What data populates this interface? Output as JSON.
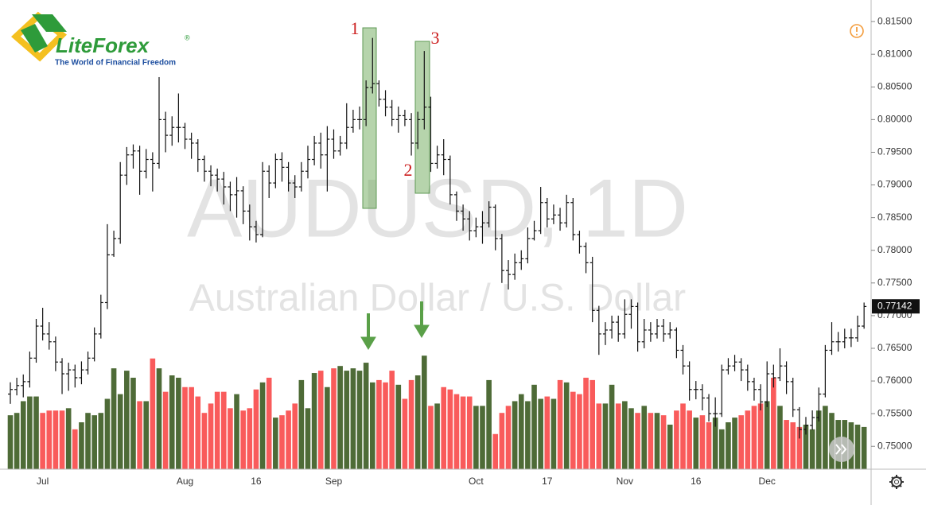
{
  "logo": {
    "name": "LiteForex",
    "mark": "®",
    "tagline": "The World of Financial Freedom"
  },
  "chart_data": {
    "type": "ohlc",
    "title": "AUDUSD, 1D",
    "subtitle": "Australian Dollar / U.S. Dollar",
    "annotations": [
      "1",
      "2",
      "3"
    ],
    "last_price": 0.77142,
    "color": "#111111",
    "volume_up_color": "#4e6b37",
    "volume_down_color": "#f95b5b",
    "ylim": [
      0.7465,
      0.8183
    ],
    "yticks": [
      {
        "value": 0.75,
        "label": "0.75000"
      },
      {
        "value": 0.755,
        "label": "0.75500"
      },
      {
        "value": 0.76,
        "label": "0.76000"
      },
      {
        "value": 0.765,
        "label": "0.76500"
      },
      {
        "value": 0.77,
        "label": "0.77000"
      },
      {
        "value": 0.775,
        "label": "0.77500"
      },
      {
        "value": 0.78,
        "label": "0.78000"
      },
      {
        "value": 0.785,
        "label": "0.78500"
      },
      {
        "value": 0.79,
        "label": "0.79000"
      },
      {
        "value": 0.795,
        "label": "0.79500"
      },
      {
        "value": 0.8,
        "label": "0.80000"
      },
      {
        "value": 0.805,
        "label": "0.80500"
      },
      {
        "value": 0.81,
        "label": "0.81000"
      },
      {
        "value": 0.815,
        "label": "0.81500"
      }
    ],
    "y2lim": [
      0,
      100
    ],
    "categories": [
      null,
      null,
      null,
      null,
      null,
      "Jul",
      null,
      null,
      null,
      null,
      null,
      null,
      null,
      null,
      null,
      null,
      null,
      null,
      null,
      null,
      null,
      null,
      null,
      null,
      null,
      null,
      null,
      "Aug",
      null,
      null,
      null,
      null,
      null,
      null,
      null,
      null,
      null,
      null,
      "16",
      null,
      null,
      null,
      null,
      null,
      null,
      null,
      null,
      null,
      null,
      null,
      "Sep",
      null,
      null,
      null,
      null,
      null,
      null,
      null,
      null,
      null,
      null,
      null,
      null,
      null,
      null,
      null,
      null,
      null,
      null,
      null,
      null,
      null,
      "Oct",
      null,
      null,
      null,
      null,
      null,
      null,
      null,
      null,
      null,
      null,
      "17",
      null,
      null,
      null,
      null,
      null,
      null,
      null,
      null,
      null,
      null,
      null,
      "Nov",
      null,
      null,
      null,
      null,
      null,
      null,
      null,
      null,
      null,
      null,
      "16",
      null,
      null,
      null,
      null,
      null,
      null,
      null,
      null,
      null,
      null,
      "Dec",
      null,
      null,
      null,
      null,
      null,
      null,
      null,
      null,
      null,
      null,
      null,
      null,
      null,
      null,
      null
    ],
    "open": [
      0.758,
      0.7587,
      0.7593,
      0.7599,
      0.7635,
      0.7684,
      0.7672,
      0.766,
      0.7629,
      0.7611,
      0.7617,
      0.7605,
      0.7617,
      0.7635,
      0.7672,
      0.772,
      0.7793,
      0.7818,
      0.7915,
      0.7946,
      0.7952,
      0.7921,
      0.7939,
      0.7933,
      0.8,
      0.7976,
      0.7988,
      0.7988,
      0.797,
      0.7964,
      0.7939,
      0.7921,
      0.7915,
      0.7909,
      0.7897,
      0.7885,
      0.7891,
      0.786,
      0.7836,
      0.7824,
      0.7921,
      0.7903,
      0.7939,
      0.7927,
      0.7903,
      0.7897,
      0.7921,
      0.7939,
      0.7964,
      0.7946,
      0.797,
      0.7952,
      0.7964,
      0.7988,
      0.8,
      0.8,
      0.8049,
      0.8055,
      0.8031,
      0.8019,
      0.8,
      0.8006,
      0.8,
      0.7964,
      0.8,
      0.8019,
      0.7933,
      0.7946,
      0.7939,
      0.7885,
      0.786,
      0.7848,
      0.783,
      0.7836,
      0.7842,
      0.7866,
      0.7818,
      0.7769,
      0.7763,
      0.7781,
      0.7787,
      0.7818,
      0.783,
      0.7873,
      0.7848,
      0.7854,
      0.7842,
      0.7873,
      0.7824,
      0.7806,
      0.7781,
      0.7708,
      0.7672,
      0.7678,
      0.769,
      0.7672,
      0.7702,
      0.7714,
      0.766,
      0.7678,
      0.7672,
      0.7684,
      0.7672,
      0.7678,
      0.7647,
      0.7623,
      0.7587,
      0.7587,
      0.7574,
      0.755,
      0.755,
      0.7617,
      0.7623,
      0.7629,
      0.7617,
      0.7599,
      0.7587,
      0.7568,
      0.7611,
      0.7605,
      0.7623,
      0.7599,
      0.7556,
      0.7526,
      0.7532,
      0.7544,
      0.758,
      0.7647,
      0.766,
      0.766,
      0.7666,
      0.7666,
      0.7684
    ],
    "high": [
      0.7598,
      0.7605,
      0.761,
      0.7645,
      0.7695,
      0.7712,
      0.769,
      0.7668,
      0.7635,
      0.7628,
      0.7625,
      0.763,
      0.7645,
      0.7682,
      0.7732,
      0.784,
      0.783,
      0.7935,
      0.7958,
      0.7962,
      0.796,
      0.7955,
      0.795,
      0.8065,
      0.8012,
      0.8005,
      0.804,
      0.7995,
      0.798,
      0.797,
      0.7945,
      0.793,
      0.7925,
      0.792,
      0.7905,
      0.7912,
      0.7898,
      0.787,
      0.7845,
      0.7935,
      0.793,
      0.7948,
      0.795,
      0.7935,
      0.7915,
      0.7935,
      0.796,
      0.7975,
      0.798,
      0.799,
      0.7985,
      0.7975,
      0.8025,
      0.8015,
      0.802,
      0.806,
      0.8125,
      0.806,
      0.8045,
      0.803,
      0.802,
      0.8015,
      0.801,
      0.8012,
      0.8105,
      0.8035,
      0.796,
      0.797,
      0.7945,
      0.789,
      0.787,
      0.786,
      0.785,
      0.786,
      0.7875,
      0.787,
      0.7825,
      0.7785,
      0.7795,
      0.78,
      0.7835,
      0.7845,
      0.7897,
      0.788,
      0.787,
      0.7865,
      0.7885,
      0.788,
      0.783,
      0.7812,
      0.779,
      0.7715,
      0.769,
      0.77,
      0.77,
      0.7725,
      0.7725,
      0.772,
      0.7695,
      0.769,
      0.7695,
      0.7695,
      0.769,
      0.7682,
      0.7655,
      0.763,
      0.76,
      0.7595,
      0.758,
      0.7575,
      0.7625,
      0.7635,
      0.764,
      0.7635,
      0.7625,
      0.7605,
      0.7595,
      0.763,
      0.7625,
      0.765,
      0.763,
      0.7605,
      0.756,
      0.7545,
      0.7555,
      0.759,
      0.7655,
      0.769,
      0.7675,
      0.768,
      0.768,
      0.77,
      0.772
    ],
    "low": [
      0.7565,
      0.7578,
      0.7575,
      0.759,
      0.7628,
      0.7662,
      0.7648,
      0.7615,
      0.758,
      0.7585,
      0.759,
      0.7595,
      0.761,
      0.763,
      0.7665,
      0.771,
      0.779,
      0.781,
      0.79,
      0.7925,
      0.7885,
      0.791,
      0.789,
      0.7925,
      0.795,
      0.796,
      0.7965,
      0.7955,
      0.794,
      0.792,
      0.7905,
      0.7898,
      0.789,
      0.787,
      0.786,
      0.785,
      0.784,
      0.7815,
      0.7812,
      0.782,
      0.788,
      0.7895,
      0.7905,
      0.789,
      0.788,
      0.789,
      0.791,
      0.793,
      0.7925,
      0.789,
      0.794,
      0.7945,
      0.7955,
      0.798,
      0.7985,
      0.799,
      0.804,
      0.802,
      0.8005,
      0.799,
      0.798,
      0.799,
      0.7945,
      0.7955,
      0.7985,
      0.792,
      0.7925,
      0.7915,
      0.787,
      0.7845,
      0.783,
      0.7815,
      0.782,
      0.781,
      0.7835,
      0.78,
      0.775,
      0.774,
      0.7755,
      0.777,
      0.778,
      0.7815,
      0.7825,
      0.7835,
      0.784,
      0.783,
      0.7835,
      0.7815,
      0.7795,
      0.7765,
      0.769,
      0.764,
      0.7655,
      0.7665,
      0.766,
      0.7665,
      0.768,
      0.7645,
      0.765,
      0.766,
      0.7665,
      0.766,
      0.7665,
      0.7635,
      0.761,
      0.757,
      0.7572,
      0.7555,
      0.7538,
      0.753,
      0.7545,
      0.761,
      0.7615,
      0.76,
      0.7585,
      0.757,
      0.7555,
      0.756,
      0.759,
      0.76,
      0.758,
      0.7545,
      0.7512,
      0.7518,
      0.7525,
      0.7538,
      0.7575,
      0.764,
      0.7645,
      0.765,
      0.7652,
      0.766,
      0.768
    ],
    "close": [
      0.7587,
      0.7593,
      0.7599,
      0.7635,
      0.7684,
      0.7672,
      0.766,
      0.7629,
      0.7611,
      0.7617,
      0.7605,
      0.7617,
      0.7635,
      0.7672,
      0.772,
      0.7793,
      0.7818,
      0.7915,
      0.7946,
      0.7952,
      0.7921,
      0.7939,
      0.7933,
      0.8,
      0.7976,
      0.7988,
      0.7988,
      0.797,
      0.7964,
      0.7939,
      0.7921,
      0.7915,
      0.7909,
      0.7897,
      0.7885,
      0.7891,
      0.786,
      0.7836,
      0.7824,
      0.7921,
      0.7903,
      0.7939,
      0.7927,
      0.7903,
      0.7897,
      0.7921,
      0.7939,
      0.7964,
      0.7946,
      0.797,
      0.7952,
      0.7964,
      0.7988,
      0.8,
      0.8,
      0.8049,
      0.8055,
      0.8031,
      0.8019,
      0.8,
      0.8006,
      0.8,
      0.7964,
      0.8,
      0.8019,
      0.7933,
      0.7946,
      0.7939,
      0.7885,
      0.786,
      0.7848,
      0.783,
      0.7836,
      0.7842,
      0.7866,
      0.7818,
      0.7769,
      0.7763,
      0.7781,
      0.7787,
      0.7818,
      0.783,
      0.7873,
      0.7848,
      0.7854,
      0.7842,
      0.7873,
      0.7824,
      0.7806,
      0.7781,
      0.7708,
      0.7672,
      0.7678,
      0.769,
      0.7672,
      0.7702,
      0.7714,
      0.766,
      0.7678,
      0.7672,
      0.7684,
      0.7672,
      0.7678,
      0.7647,
      0.7623,
      0.7587,
      0.7587,
      0.7574,
      0.755,
      0.755,
      0.7617,
      0.7623,
      0.7629,
      0.7617,
      0.7599,
      0.7587,
      0.7568,
      0.7611,
      0.7605,
      0.7623,
      0.7599,
      0.7556,
      0.7526,
      0.7532,
      0.7544,
      0.758,
      0.7647,
      0.766,
      0.766,
      0.7666,
      0.7666,
      0.7684,
      0.7714
    ],
    "volume": [
      11.5,
      12,
      14.5,
      15.5,
      15.5,
      12,
      12.5,
      12.5,
      12.5,
      13,
      8.5,
      10,
      12,
      11.5,
      12,
      15,
      21.5,
      16,
      21,
      19.5,
      14.5,
      14.5,
      23.6,
      21.5,
      16.5,
      20,
      19.5,
      17.5,
      17.5,
      15.5,
      12,
      14,
      16.5,
      16.5,
      13,
      16,
      12.5,
      13,
      17,
      18.5,
      19.5,
      11,
      11.5,
      12.5,
      14,
      19,
      13,
      20.5,
      21,
      17.5,
      21.5,
      22,
      21,
      21.5,
      21,
      22.7,
      18.5,
      19,
      18.5,
      21,
      18,
      15,
      19,
      20,
      24.2,
      13.5,
      14,
      17.5,
      17,
      16,
      15.5,
      15.5,
      13.5,
      13.5,
      19,
      7.5,
      12,
      13.5,
      14.5,
      16,
      14.5,
      18,
      15,
      15.5,
      15,
      19,
      18.5,
      16.5,
      16,
      19.5,
      19,
      14,
      14,
      18,
      14,
      14.5,
      13,
      12,
      13.5,
      12,
      12,
      11.5,
      9.5,
      12.5,
      14,
      12.5,
      11,
      11.5,
      10,
      11,
      8.5,
      10,
      11,
      11.5,
      12.5,
      13.5,
      14,
      14.5,
      19.5,
      13.5,
      10.5,
      10,
      9,
      9.5,
      8.5,
      12.5,
      13.5,
      12,
      10.5,
      10.5,
      10,
      9.5,
      9
    ]
  }
}
